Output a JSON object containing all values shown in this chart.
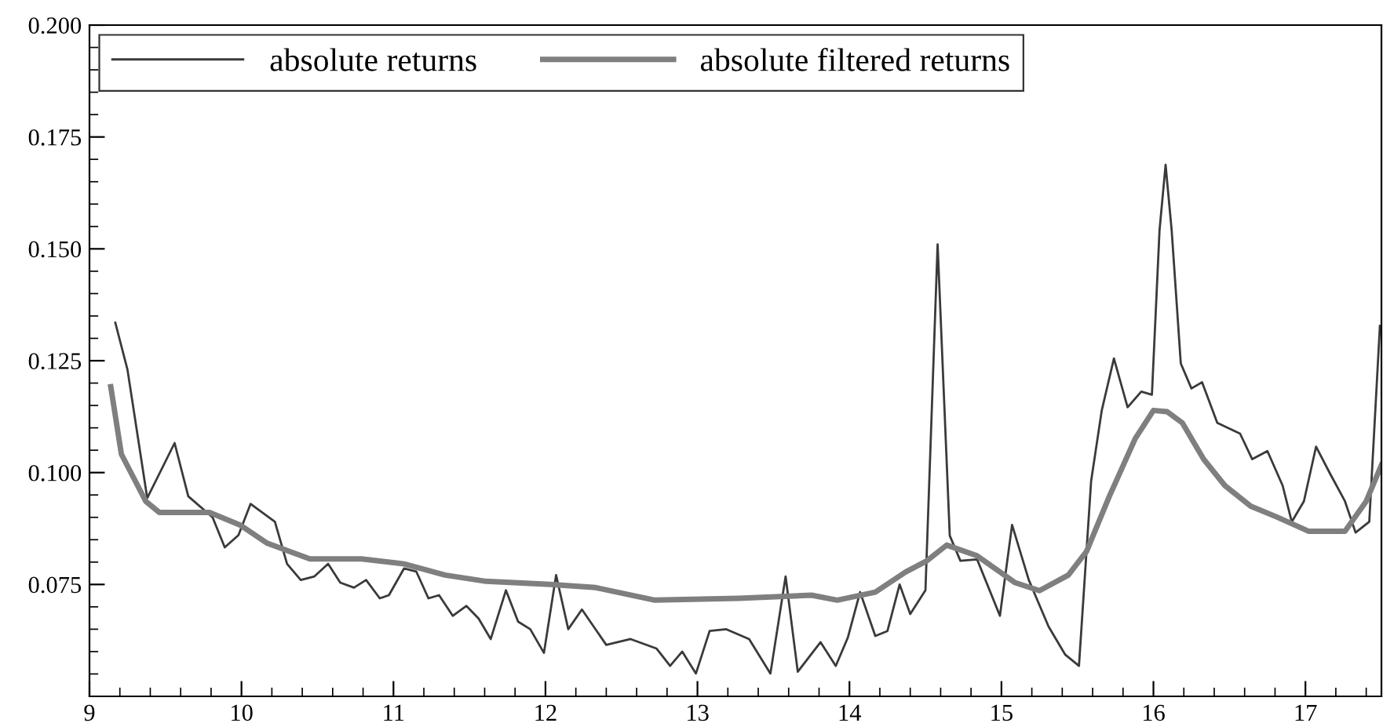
{
  "chart_data": {
    "type": "line",
    "xlim": [
      9,
      17.5
    ],
    "ylim": [
      0.05,
      0.2
    ],
    "xticks": [
      9,
      {
        "value": 9.2,
        "label": null
      },
      {
        "value": 9.4,
        "label": null
      },
      {
        "value": 9.6,
        "label": null
      },
      {
        "value": 9.8,
        "label": null
      },
      10,
      {
        "value": 10.2,
        "label": null
      },
      {
        "value": 10.4,
        "label": null
      },
      {
        "value": 10.6,
        "label": null
      },
      {
        "value": 10.8,
        "label": null
      },
      11,
      {
        "value": 11.2,
        "label": null
      },
      {
        "value": 11.4,
        "label": null
      },
      {
        "value": 11.6,
        "label": null
      },
      {
        "value": 11.8,
        "label": null
      },
      12,
      {
        "value": 12.2,
        "label": null
      },
      {
        "value": 12.4,
        "label": null
      },
      {
        "value": 12.6,
        "label": null
      },
      {
        "value": 12.8,
        "label": null
      },
      13,
      {
        "value": 13.2,
        "label": null
      },
      {
        "value": 13.4,
        "label": null
      },
      {
        "value": 13.6,
        "label": null
      },
      {
        "value": 13.8,
        "label": null
      },
      14,
      {
        "value": 14.2,
        "label": null
      },
      {
        "value": 14.4,
        "label": null
      },
      {
        "value": 14.6,
        "label": null
      },
      {
        "value": 14.8,
        "label": null
      },
      15,
      {
        "value": 15.2,
        "label": null
      },
      {
        "value": 15.4,
        "label": null
      },
      {
        "value": 15.6,
        "label": null
      },
      {
        "value": 15.8,
        "label": null
      },
      16,
      {
        "value": 16.2,
        "label": null
      },
      {
        "value": 16.4,
        "label": null
      },
      {
        "value": 16.6,
        "label": null
      },
      {
        "value": 16.8,
        "label": null
      },
      17,
      {
        "value": 17.2,
        "label": null
      },
      {
        "value": 17.4,
        "label": null
      }
    ],
    "yticks": [
      {
        "value": 0.075,
        "label": "0.075"
      },
      {
        "value": 0.1,
        "label": "0.100"
      },
      {
        "value": 0.125,
        "label": "0.125"
      },
      {
        "value": 0.15,
        "label": "0.150"
      },
      {
        "value": 0.175,
        "label": "0.175"
      },
      {
        "value": 0.2,
        "label": "0.200"
      },
      {
        "value": 0.055,
        "label": null
      },
      {
        "value": 0.06,
        "label": null
      },
      {
        "value": 0.065,
        "label": null
      },
      {
        "value": 0.07,
        "label": null
      },
      {
        "value": 0.08,
        "label": null
      },
      {
        "value": 0.085,
        "label": null
      },
      {
        "value": 0.09,
        "label": null
      },
      {
        "value": 0.095,
        "label": null
      },
      {
        "value": 0.105,
        "label": null
      },
      {
        "value": 0.11,
        "label": null
      },
      {
        "value": 0.115,
        "label": null
      },
      {
        "value": 0.12,
        "label": null
      },
      {
        "value": 0.13,
        "label": null
      },
      {
        "value": 0.135,
        "label": null
      },
      {
        "value": 0.14,
        "label": null
      },
      {
        "value": 0.145,
        "label": null
      },
      {
        "value": 0.155,
        "label": null
      },
      {
        "value": 0.16,
        "label": null
      },
      {
        "value": 0.165,
        "label": null
      },
      {
        "value": 0.17,
        "label": null
      },
      {
        "value": 0.18,
        "label": null
      },
      {
        "value": 0.185,
        "label": null
      },
      {
        "value": 0.19,
        "label": null
      },
      {
        "value": 0.195,
        "label": null
      }
    ],
    "grid": false,
    "legend": "top left",
    "marker": "none",
    "line_style": "solid",
    "series": [
      {
        "name": "absolute returns",
        "color": "#3a3a3a",
        "x": [
          9.17,
          9.25,
          9.38,
          9.56,
          9.65,
          9.81,
          9.89,
          9.98,
          10.06,
          10.22,
          10.3,
          10.39,
          10.48,
          10.57,
          10.65,
          10.74,
          10.82,
          10.91,
          10.97,
          11.07,
          11.15,
          11.23,
          11.3,
          11.39,
          11.48,
          11.56,
          11.64,
          11.74,
          11.82,
          11.9,
          11.99,
          12.07,
          12.15,
          12.24,
          12.4,
          12.56,
          12.73,
          12.82,
          12.9,
          12.99,
          13.08,
          13.19,
          13.34,
          13.48,
          13.58,
          13.66,
          13.81,
          13.91,
          13.99,
          14.07,
          14.17,
          14.25,
          14.33,
          14.4,
          14.5,
          14.58,
          14.66,
          14.73,
          14.84,
          14.99,
          15.07,
          15.18,
          15.31,
          15.42,
          15.51,
          15.59,
          15.66,
          15.74,
          15.83,
          15.92,
          15.99,
          16.04,
          16.08,
          16.12,
          16.18,
          16.25,
          16.32,
          16.42,
          16.57,
          16.65,
          16.75,
          16.85,
          16.91,
          16.99,
          17.07,
          17.16,
          17.26,
          17.33,
          17.42,
          17.49
        ],
        "values": [
          0.1335,
          0.123,
          0.0943,
          0.1066,
          0.0947,
          0.09,
          0.0833,
          0.086,
          0.093,
          0.089,
          0.0796,
          0.076,
          0.0768,
          0.0796,
          0.0754,
          0.0743,
          0.076,
          0.0719,
          0.0726,
          0.0786,
          0.0779,
          0.0719,
          0.0726,
          0.068,
          0.0702,
          0.0674,
          0.0628,
          0.0737,
          0.0667,
          0.065,
          0.0597,
          0.0771,
          0.065,
          0.0694,
          0.0615,
          0.0628,
          0.0607,
          0.0568,
          0.06,
          0.0551,
          0.0646,
          0.065,
          0.0628,
          0.0551,
          0.0768,
          0.0555,
          0.0621,
          0.0568,
          0.0632,
          0.0733,
          0.0635,
          0.0646,
          0.075,
          0.0684,
          0.0737,
          0.151,
          0.0859,
          0.0803,
          0.0806,
          0.068,
          0.0883,
          0.076,
          0.0656,
          0.0593,
          0.0568,
          0.0981,
          0.1139,
          0.1255,
          0.1146,
          0.1181,
          0.1174,
          0.1541,
          0.1688,
          0.1541,
          0.1244,
          0.1188,
          0.1202,
          0.1111,
          0.1087,
          0.103,
          0.1048,
          0.0971,
          0.089,
          0.0936,
          0.1058,
          0.0999,
          0.0936,
          0.0866,
          0.089,
          0.1328
        ]
      },
      {
        "name": "absolute filtered returns",
        "color": "#7f7f7f",
        "x": [
          9.14,
          9.21,
          9.37,
          9.46,
          9.79,
          9.99,
          10.17,
          10.45,
          10.79,
          11.07,
          11.34,
          11.61,
          12.03,
          12.33,
          12.72,
          13.27,
          13.75,
          13.92,
          14.17,
          14.37,
          14.51,
          14.64,
          14.84,
          15.09,
          15.25,
          15.44,
          15.56,
          15.71,
          15.88,
          16.0,
          16.09,
          16.19,
          16.33,
          16.47,
          16.64,
          16.81,
          17.02,
          17.26,
          17.4,
          17.5
        ],
        "values": [
          0.1192,
          0.1041,
          0.0936,
          0.0911,
          0.0911,
          0.0883,
          0.0842,
          0.0807,
          0.0807,
          0.0796,
          0.0771,
          0.0757,
          0.075,
          0.0743,
          0.0715,
          0.0719,
          0.0726,
          0.0715,
          0.0733,
          0.0778,
          0.0803,
          0.0838,
          0.0814,
          0.0754,
          0.0736,
          0.0771,
          0.0824,
          0.0947,
          0.1076,
          0.1139,
          0.1136,
          0.1111,
          0.103,
          0.0971,
          0.0925,
          0.0901,
          0.0869,
          0.0869,
          0.0936,
          0.1017
        ]
      }
    ]
  }
}
